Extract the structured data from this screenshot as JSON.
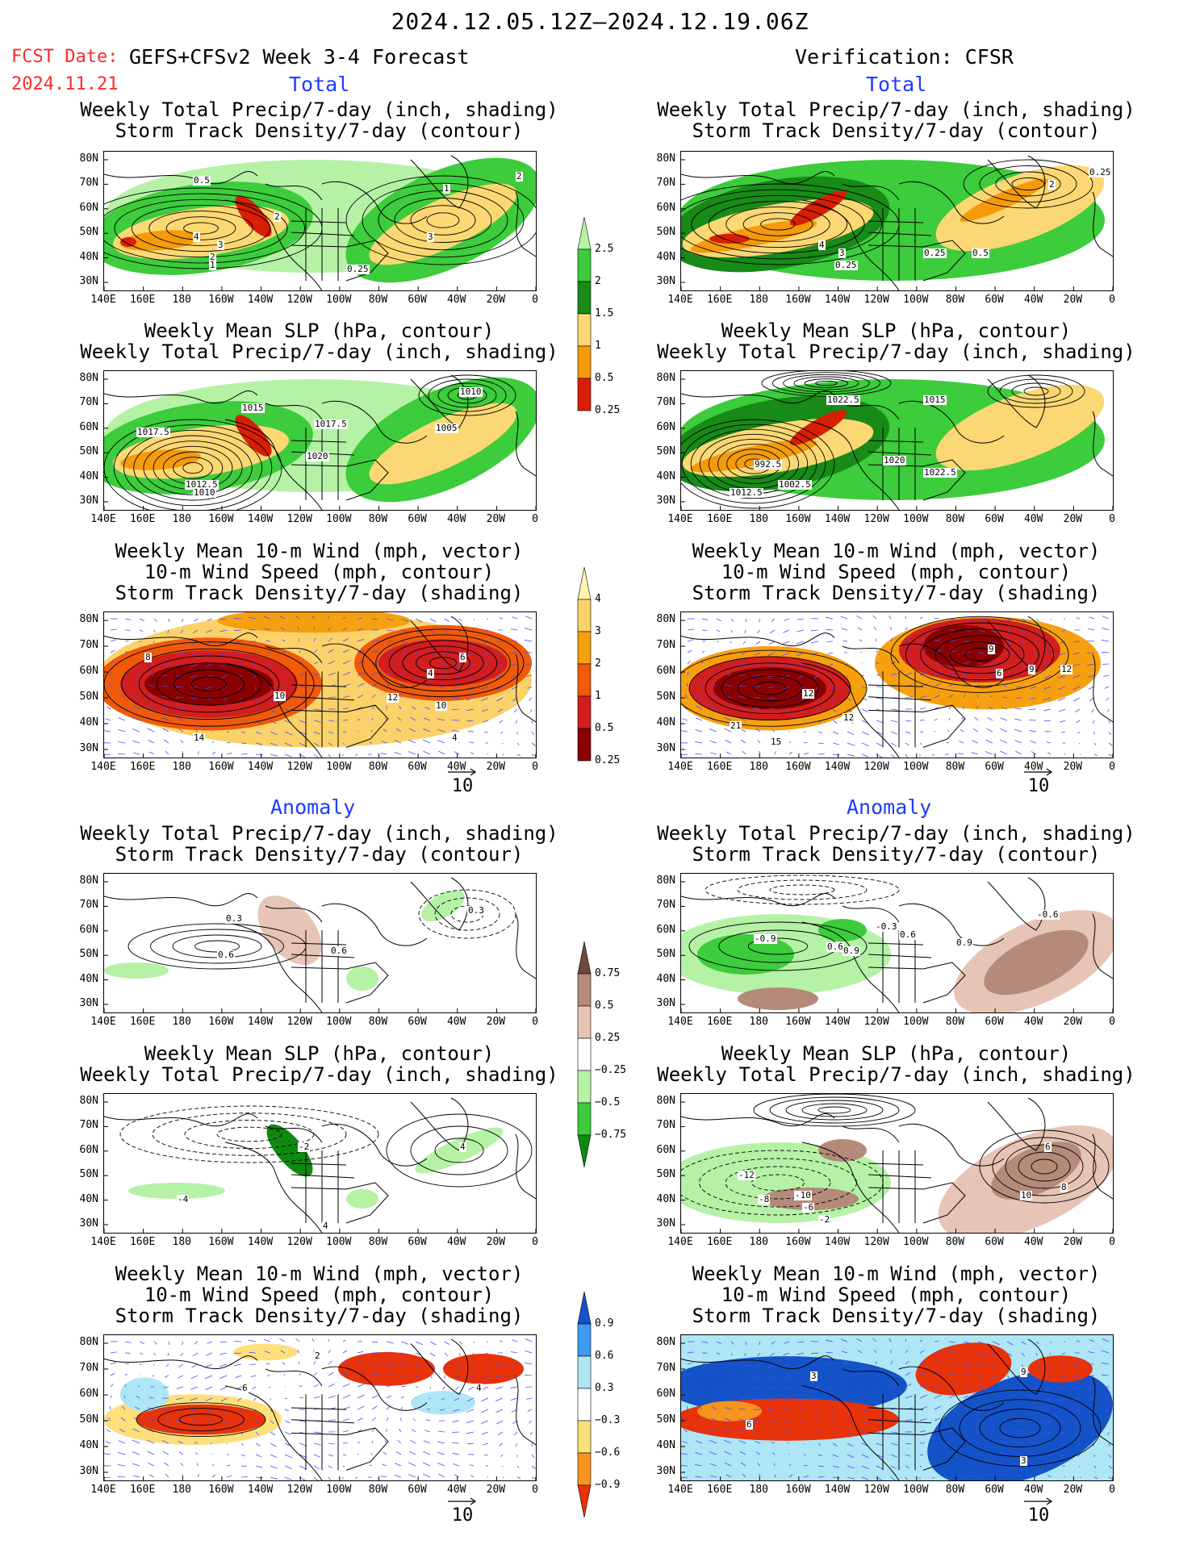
{
  "header": {
    "date_range": "2024.12.05.12Z—2024.12.19.06Z",
    "fcst_label": "FCST Date:",
    "fcst_date": "2024.11.21",
    "left_title": "GEFS+CFSv2 Week 3-4 Forecast",
    "right_title": "Verification: CFSR",
    "total_label": "Total",
    "anomaly_label": "Anomaly"
  },
  "axes": {
    "lat_labels": [
      "80N",
      "70N",
      "60N",
      "50N",
      "40N",
      "30N"
    ],
    "lon_labels": [
      "140E",
      "160E",
      "180",
      "160W",
      "140W",
      "120W",
      "100W",
      "80W",
      "60W",
      "40W",
      "20W",
      "0"
    ]
  },
  "panel_titles": {
    "precip_storm": [
      "Weekly Total Precip/7-day (inch, shading)",
      "Storm Track Density/7-day (contour)"
    ],
    "slp_precip": [
      "Weekly Mean SLP (hPa, contour)",
      "Weekly Total Precip/7-day (inch, shading)"
    ],
    "wind_storm": [
      "Weekly Mean 10-m Wind (mph, vector)",
      "10-m Wind Speed (mph, contour)",
      "Storm Track Density/7-day (shading)"
    ]
  },
  "colorbars": {
    "precip_total": {
      "labels": [
        "2.5",
        "2",
        "1.5",
        "1",
        "0.5",
        "0.25"
      ],
      "colors": [
        "#d81e05",
        "#f59a0a",
        "#fcd874",
        "#178a17",
        "#3ccc3c",
        "#b5f2a6"
      ]
    },
    "storm_total": {
      "labels": [
        "4",
        "3",
        "2",
        "1",
        "0.5",
        "0.25"
      ],
      "colors": [
        "#8a0000",
        "#d21e1e",
        "#f05a0a",
        "#f7a00f",
        "#fbd26a",
        "#fff3b0"
      ]
    },
    "precip_anom": {
      "labels": [
        "0.75",
        "0.5",
        "0.25",
        "−0.25",
        "−0.5",
        "−0.75"
      ],
      "colors": [
        "#0f8a0f",
        "#3ccc3c",
        "#b5f2a6",
        "#ffffff",
        "#e6c4b6",
        "#b48a78",
        "#6e4a3a"
      ]
    },
    "storm_anom": {
      "labels": [
        "0.9",
        "0.6",
        "0.3",
        "−0.3",
        "−0.6",
        "−0.9"
      ],
      "colors": [
        "#e8320a",
        "#f7941d",
        "#fde07a",
        "#ffffff",
        "#aee6f5",
        "#3c9bf0",
        "#1452c8"
      ]
    }
  },
  "vector_ref": "10",
  "contour_labels": {
    "p1": [
      "0.5",
      "1",
      "2",
      "4",
      "3",
      "2",
      "1",
      "0.25",
      "3",
      "2"
    ],
    "p2": [
      "0.25",
      "4",
      "3",
      "0.25",
      "0.25",
      "0.5",
      "2"
    ],
    "p3": [
      "1017.5",
      "1015",
      "1017.5",
      "1020",
      "1012.5",
      "1010",
      "1005",
      "1010"
    ],
    "p4": [
      "1022.5",
      "1015",
      "992.5",
      "1002.5",
      "1012.5",
      "1020",
      "1022.5"
    ],
    "p5": [
      "14",
      "10",
      "4",
      "6",
      "10",
      "12",
      "8",
      "4"
    ],
    "p6": [
      "21",
      "12",
      "12",
      "15",
      "9",
      "6",
      "9",
      "12"
    ],
    "p7": [
      "0.3",
      "0.6",
      "0.6",
      "0.3"
    ],
    "p8": [
      "-0.9",
      "0.6",
      "0.9",
      "-0.3",
      "0.6",
      "-0.6",
      "0.9"
    ],
    "p9": [
      "-2",
      "4",
      "-4",
      "4"
    ],
    "p10": [
      "-12",
      "-8",
      "-10",
      "-6",
      "-2",
      "10",
      "8",
      "6"
    ],
    "p11": [
      "2",
      "4",
      "6"
    ],
    "p12": [
      "6",
      "3",
      "9",
      "3"
    ]
  }
}
